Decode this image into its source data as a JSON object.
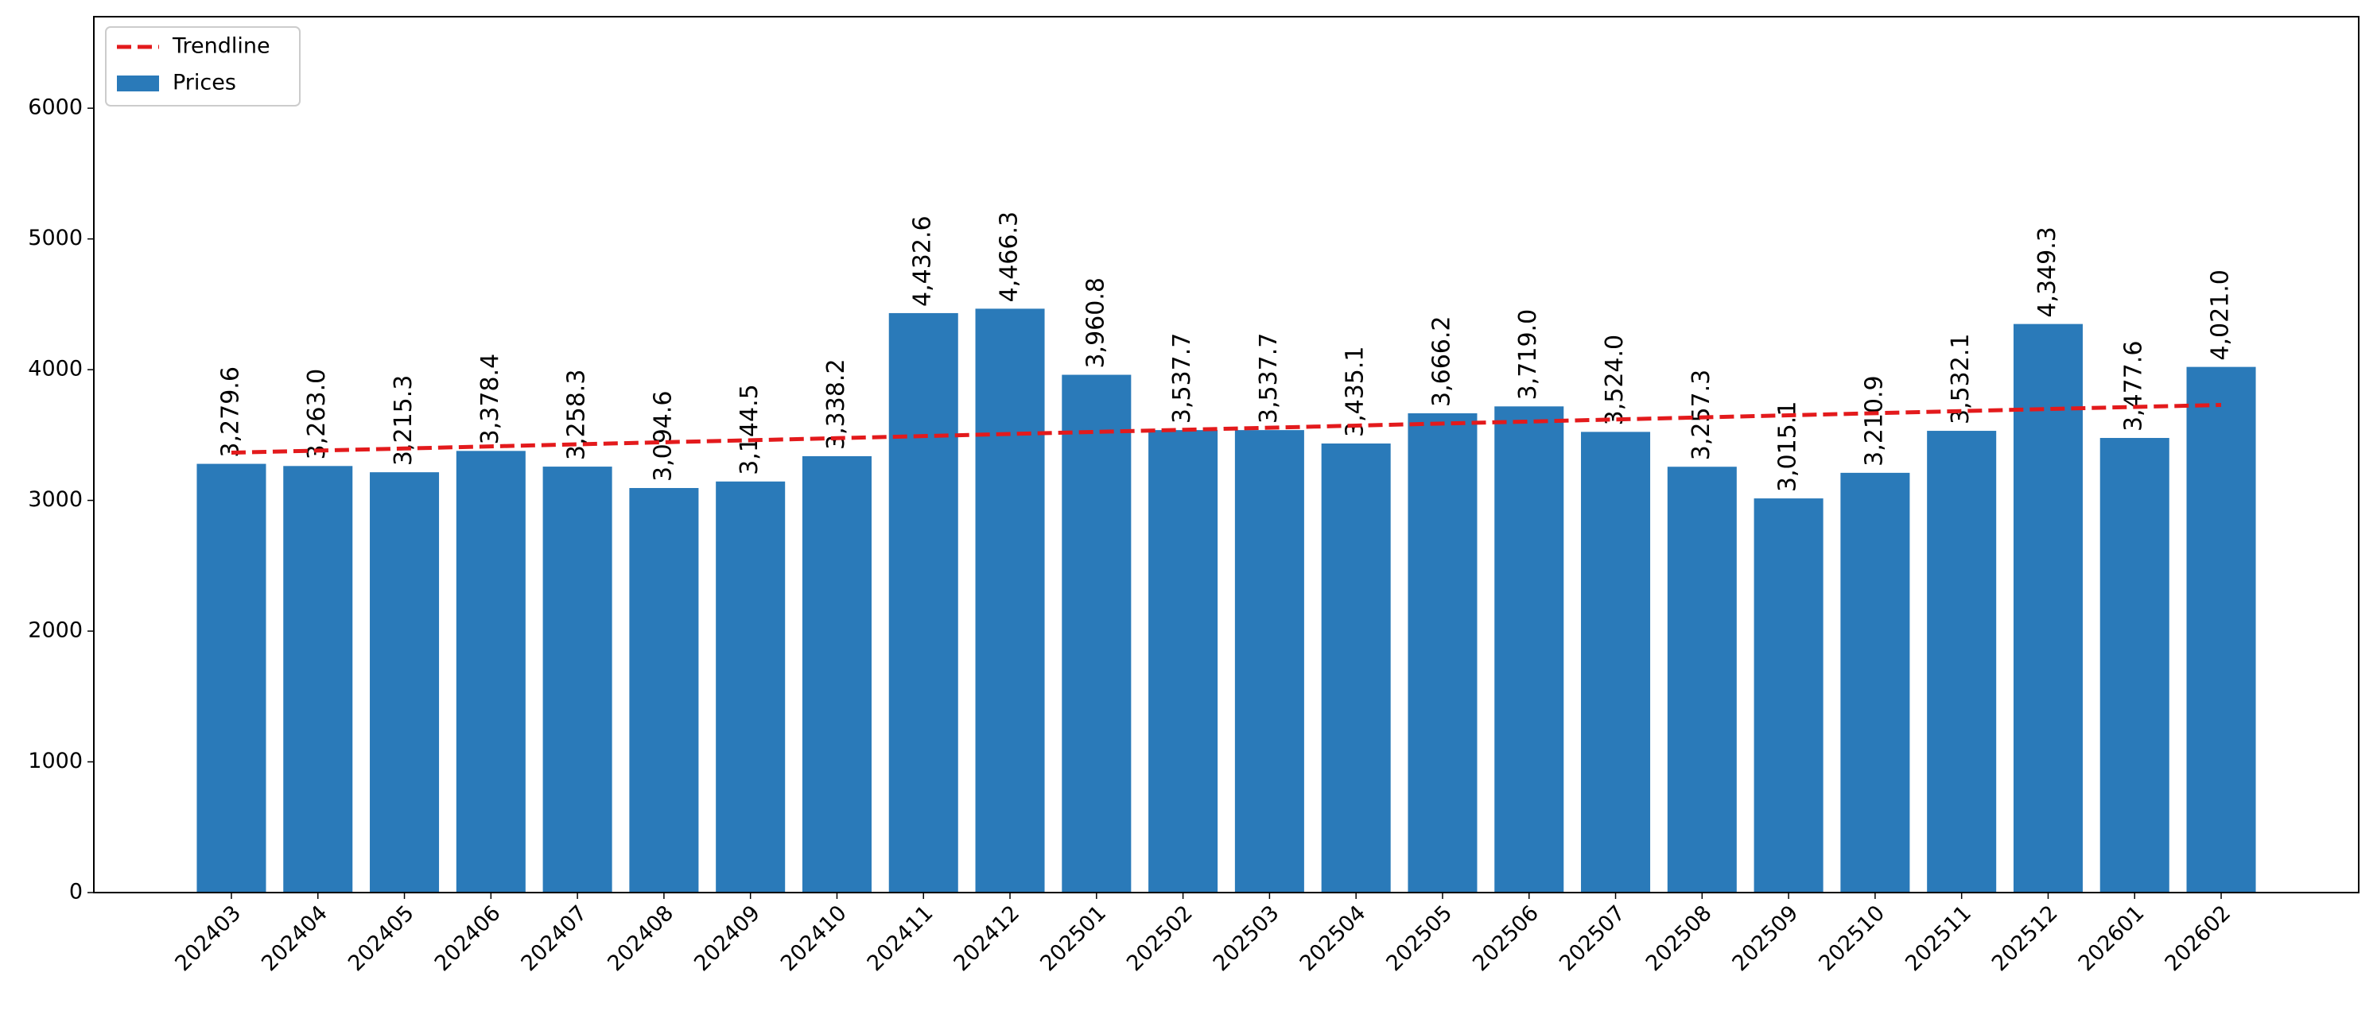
{
  "chart_data": {
    "type": "bar",
    "categories": [
      "202403",
      "202404",
      "202405",
      "202406",
      "202407",
      "202408",
      "202409",
      "202410",
      "202411",
      "202412",
      "202501",
      "202502",
      "202503",
      "202504",
      "202505",
      "202506",
      "202507",
      "202508",
      "202509",
      "202510",
      "202511",
      "202512",
      "202601",
      "202602"
    ],
    "series": [
      {
        "name": "Prices",
        "type": "bar",
        "color": "#2a7ab9",
        "values": [
          3279.6,
          3263.0,
          3215.3,
          3378.4,
          3258.3,
          3094.6,
          3144.5,
          3338.2,
          4432.6,
          4466.3,
          3960.8,
          3537.7,
          3537.7,
          3435.1,
          3666.2,
          3719.0,
          3524.0,
          3257.3,
          3015.1,
          3210.9,
          3532.1,
          4349.3,
          3477.6,
          4021.0
        ],
        "value_labels": [
          "3,279.6",
          "3,263.0",
          "3,215.3",
          "3,378.4",
          "3,258.3",
          "3,094.6",
          "3,144.5",
          "3,338.2",
          "4,432.6",
          "4,466.3",
          "3,960.8",
          "3,537.7",
          "3,537.7",
          "3,435.1",
          "3,666.2",
          "3,719.0",
          "3,524.0",
          "3,257.3",
          "3,015.1",
          "3,210.9",
          "3,532.1",
          "4,349.3",
          "3,477.6",
          "4,021.0"
        ]
      },
      {
        "name": "Trendline",
        "type": "line",
        "color": "#e31a1c",
        "dashed": true,
        "values": [
          3365,
          3381,
          3397,
          3413,
          3429,
          3445,
          3460,
          3476,
          3492,
          3508,
          3524,
          3540,
          3556,
          3572,
          3588,
          3603,
          3619,
          3635,
          3651,
          3667,
          3683,
          3699,
          3715,
          3730
        ]
      }
    ],
    "ylim": [
      0,
      6700
    ],
    "yticks": [
      0,
      1000,
      2000,
      3000,
      4000,
      5000,
      6000
    ],
    "grid": false,
    "legend": "upper-left"
  }
}
